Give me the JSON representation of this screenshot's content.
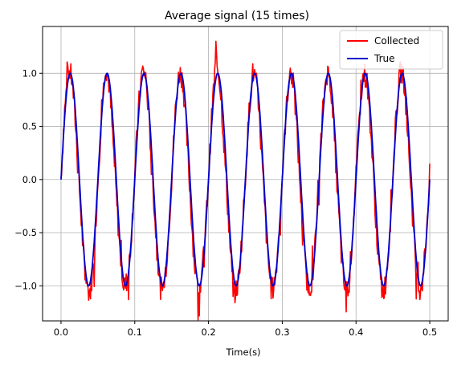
{
  "chart_data": {
    "type": "line",
    "title": "Average signal (15 times)",
    "xlabel": "Time(s)",
    "ylabel": "",
    "xlim": [
      -0.025,
      0.525
    ],
    "ylim": [
      -1.33,
      1.44
    ],
    "x_ticks": [
      0.0,
      0.1,
      0.2,
      0.3,
      0.4,
      0.5
    ],
    "x_tick_labels": [
      "0.0",
      "0.1",
      "0.2",
      "0.3",
      "0.4",
      "0.5"
    ],
    "y_ticks": [
      -1.0,
      -0.5,
      0.0,
      0.5,
      1.0
    ],
    "y_tick_labels": [
      "−1.0",
      "−0.5",
      "0.0",
      "0.5",
      "1.0"
    ],
    "grid": true,
    "legend_position": "top-right",
    "series": [
      {
        "name": "Collected",
        "color": "#ff0000",
        "description_values": "noisy sine, frequency 20 Hz, amplitude ~1.0-1.3",
        "x": [
          0.0,
          0.005,
          0.01,
          0.015,
          0.02,
          0.025,
          0.03,
          0.035,
          0.04,
          0.045,
          0.05,
          0.055,
          0.06,
          0.065,
          0.07,
          0.075,
          0.08,
          0.085,
          0.09,
          0.095,
          0.1,
          0.105,
          0.11,
          0.115,
          0.12,
          0.125,
          0.13,
          0.135,
          0.14,
          0.145,
          0.15,
          0.155,
          0.16,
          0.165,
          0.17,
          0.175,
          0.18,
          0.185,
          0.19,
          0.195,
          0.2,
          0.205,
          0.21,
          0.215,
          0.22,
          0.225,
          0.23,
          0.235,
          0.24,
          0.245,
          0.25,
          0.255,
          0.26,
          0.265,
          0.27,
          0.275,
          0.28,
          0.285,
          0.29,
          0.295,
          0.3,
          0.305,
          0.31,
          0.315,
          0.32,
          0.325,
          0.33,
          0.335,
          0.34,
          0.345,
          0.35,
          0.355,
          0.36,
          0.365,
          0.37,
          0.375,
          0.38,
          0.385,
          0.39,
          0.395,
          0.4,
          0.405,
          0.41,
          0.415,
          0.42,
          0.425,
          0.43,
          0.435,
          0.44,
          0.445,
          0.45,
          0.455,
          0.46,
          0.465,
          0.47,
          0.475,
          0.48,
          0.485,
          0.49,
          0.495,
          0.5
        ],
        "y": [
          0.05,
          0.72,
          1.1,
          0.9,
          0.35,
          -0.2,
          -0.75,
          -1.05,
          -1.15,
          -0.8,
          -0.05,
          0.65,
          1.2,
          0.85,
          0.2,
          -0.35,
          -0.8,
          -1.05,
          -0.9,
          -0.55,
          0.1,
          0.75,
          1.1,
          0.95,
          0.35,
          -0.25,
          -0.75,
          -1.1,
          -1.0,
          -0.6,
          0.0,
          0.7,
          1.05,
          0.9,
          0.3,
          -0.3,
          -0.85,
          -1.1,
          -0.95,
          -0.55,
          0.05,
          0.75,
          1.3,
          0.9,
          0.25,
          -0.3,
          -0.85,
          -1.2,
          -1.0,
          -0.55,
          0.05,
          0.7,
          1.05,
          0.85,
          0.3,
          -0.3,
          -0.8,
          -1.1,
          -0.95,
          -0.5,
          0.05,
          0.65,
          1.05,
          0.85,
          0.25,
          -0.35,
          -0.85,
          -1.1,
          -0.95,
          -0.55,
          0.1,
          0.7,
          1.05,
          0.9,
          0.3,
          -0.3,
          -0.85,
          -1.15,
          -1.0,
          -0.5,
          0.05,
          0.7,
          1.05,
          0.85,
          0.3,
          -0.35,
          -0.85,
          -1.15,
          -1.0,
          -0.55,
          0.05,
          0.7,
          1.1,
          0.9,
          0.3,
          -0.3,
          -0.85,
          -1.1,
          -0.95,
          -0.5,
          0.15
        ]
      },
      {
        "name": "True",
        "color": "#0000cc",
        "frequency_hz": 20,
        "amplitude": 1.0,
        "x_start": 0.0,
        "x_end": 0.5
      }
    ]
  }
}
